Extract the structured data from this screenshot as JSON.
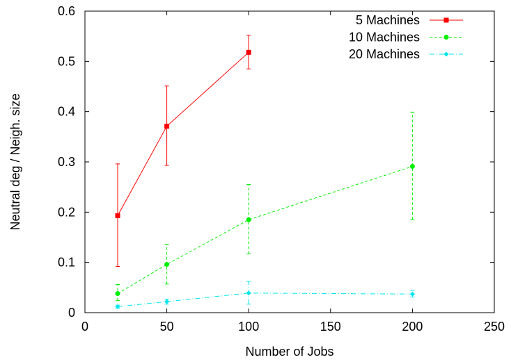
{
  "chart_data": {
    "type": "line",
    "title": "",
    "xlabel": "Number of Jobs",
    "ylabel": "Neutral deg / Neigh. size",
    "xlim": [
      0,
      250
    ],
    "ylim": [
      0,
      0.6
    ],
    "x_ticks": [
      0,
      50,
      100,
      150,
      200,
      250
    ],
    "y_ticks": [
      0,
      0.1,
      0.2,
      0.3,
      0.4,
      0.5,
      0.6
    ],
    "x_tick_labels": [
      "0",
      "50",
      "100",
      "150",
      "200",
      "250"
    ],
    "y_tick_labels": [
      "0",
      "0.1",
      "0.2",
      "0.3",
      "0.4",
      "0.5",
      "0.6"
    ],
    "grid": false,
    "legend_position": "top-right",
    "series": [
      {
        "name": "5 Machines",
        "color": "#ff0000",
        "marker": "square",
        "dash": "solid",
        "x": [
          20,
          50,
          100
        ],
        "y": [
          0.193,
          0.371,
          0.518
        ],
        "err_low": [
          0.092,
          0.293,
          0.485
        ],
        "err_high": [
          0.296,
          0.451,
          0.552
        ]
      },
      {
        "name": "10 Machines",
        "color": "#00ee00",
        "marker": "circle",
        "dash": "dashed",
        "x": [
          20,
          50,
          100,
          200
        ],
        "y": [
          0.038,
          0.096,
          0.185,
          0.291
        ],
        "err_low": [
          0.024,
          0.057,
          0.117,
          0.185
        ],
        "err_high": [
          0.056,
          0.136,
          0.255,
          0.399
        ]
      },
      {
        "name": "20 Machines",
        "color": "#00e5ee",
        "marker": "diamond",
        "dash": "dashdot",
        "x": [
          20,
          50,
          100,
          200
        ],
        "y": [
          0.012,
          0.022,
          0.039,
          0.037
        ],
        "err_low": [
          0.009,
          0.017,
          0.017,
          0.031
        ],
        "err_high": [
          0.015,
          0.027,
          0.062,
          0.044
        ]
      }
    ]
  }
}
